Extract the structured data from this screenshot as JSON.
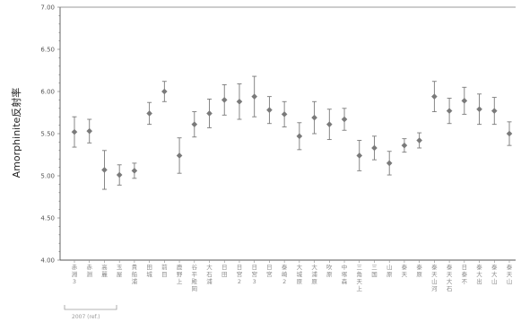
{
  "chart_data": {
    "type": "scatter",
    "error_bars": true,
    "ylabel": "Amorphinite反射率",
    "xlabel": "",
    "ylim": [
      4.0,
      7.0
    ],
    "yticks": [
      "4.00",
      "4.50",
      "5.00",
      "5.50",
      "6.00",
      "6.50",
      "7.00"
    ],
    "grid": false,
    "marker_color": "#7a7a7a",
    "categories": [
      "赤淵 3",
      "赤淵",
      "高麗",
      "玉屋",
      "貴船浦",
      "田城",
      "前目",
      "鹿野上",
      "谷平 殿岡",
      "大石浦",
      "日田",
      "日宮 2",
      "日宮 3",
      "日宮",
      "泰崎 2",
      "大城原",
      "大浦原",
      "吹原",
      "中塚森",
      "三角 天上",
      "三国",
      "山原",
      "泰天",
      "泰原",
      "泰天 山 河",
      "泰天 大石",
      "日泰 不",
      "泰大 出",
      "泰大 山",
      "泰天 山"
    ],
    "values": [
      5.52,
      5.53,
      5.07,
      5.01,
      5.06,
      5.74,
      6.0,
      5.24,
      5.61,
      5.74,
      5.9,
      5.88,
      5.94,
      5.78,
      5.73,
      5.47,
      5.69,
      5.61,
      5.67,
      5.24,
      5.33,
      5.15,
      5.36,
      5.42,
      5.94,
      5.77,
      5.89,
      5.79,
      5.77,
      5.5
    ],
    "errors": [
      0.18,
      0.14,
      0.23,
      0.12,
      0.09,
      0.13,
      0.12,
      0.21,
      0.15,
      0.17,
      0.18,
      0.21,
      0.24,
      0.16,
      0.15,
      0.16,
      0.19,
      0.18,
      0.13,
      0.18,
      0.14,
      0.14,
      0.08,
      0.09,
      0.18,
      0.15,
      0.16,
      0.18,
      0.16,
      0.14
    ],
    "annotation": "2007 (ref.)"
  }
}
